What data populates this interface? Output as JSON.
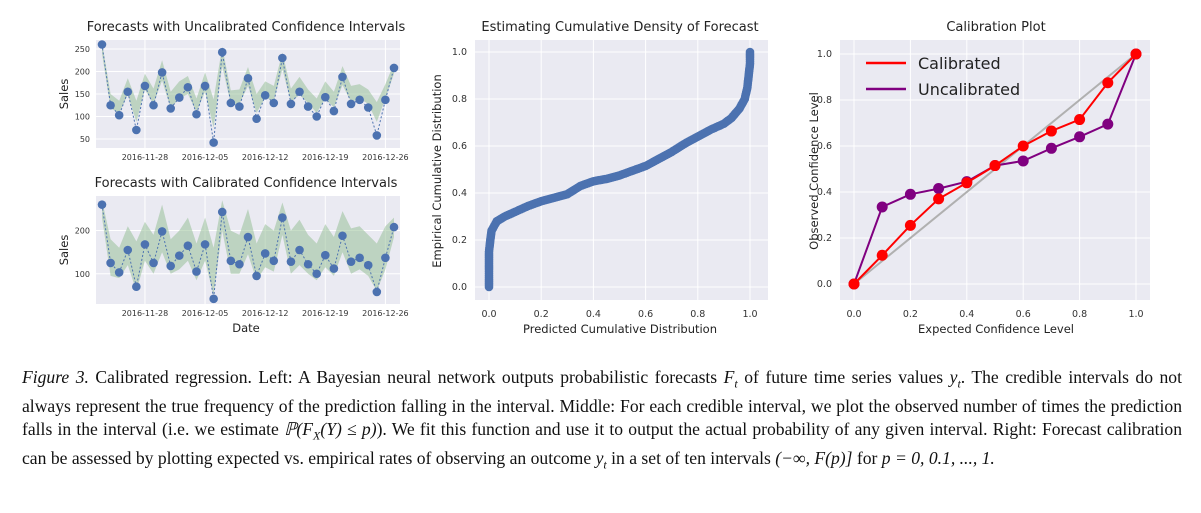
{
  "colors": {
    "panel_bg": "#EAEAF2",
    "grid": "#FFFFFF",
    "point": "#4C72B0",
    "band": "#8FBC8F",
    "calibrated": "#FF0000",
    "uncalibrated": "#800080",
    "diagonal": "#B0B0B0"
  },
  "chart_data": [
    {
      "id": "uncal",
      "type": "line",
      "title": "Forecasts with Uncalibrated Confidence Intervals",
      "xlabel": "",
      "ylabel": "Sales",
      "x_tick_labels": [
        "2016-11-28",
        "2016-12-05",
        "2016-12-12",
        "2016-12-19",
        "2016-12-26"
      ],
      "x_tick_index": [
        5,
        12,
        19,
        26,
        33
      ],
      "y_ticks": [
        50,
        100,
        150,
        200,
        250
      ],
      "ylim": [
        30,
        270
      ],
      "values": [
        260,
        125,
        103,
        155,
        70,
        168,
        125,
        198,
        118,
        142,
        165,
        105,
        168,
        42,
        243,
        130,
        122,
        185,
        95,
        147,
        130,
        230,
        128,
        155,
        122,
        100,
        143,
        112,
        188,
        128,
        137,
        120,
        58,
        137,
        208
      ],
      "band_lower": [
        240,
        118,
        108,
        148,
        88,
        160,
        128,
        180,
        118,
        140,
        150,
        110,
        155,
        75,
        212,
        128,
        128,
        168,
        108,
        142,
        135,
        205,
        132,
        148,
        130,
        108,
        140,
        120,
        170,
        132,
        140,
        128,
        88,
        140,
        195
      ],
      "band_upper": [
        265,
        150,
        135,
        185,
        135,
        195,
        162,
        225,
        155,
        178,
        190,
        140,
        198,
        138,
        255,
        158,
        160,
        210,
        150,
        178,
        168,
        242,
        162,
        188,
        160,
        140,
        178,
        155,
        212,
        168,
        172,
        160,
        132,
        172,
        218
      ]
    },
    {
      "id": "cal",
      "type": "line",
      "title": "Forecasts with Calibrated Confidence Intervals",
      "xlabel": "Date",
      "ylabel": "Sales",
      "x_tick_labels": [
        "2016-11-28",
        "2016-12-05",
        "2016-12-12",
        "2016-12-19",
        "2016-12-26"
      ],
      "x_tick_index": [
        5,
        12,
        19,
        26,
        33
      ],
      "y_ticks": [
        100,
        200
      ],
      "ylim": [
        30,
        280
      ],
      "values": [
        260,
        125,
        103,
        155,
        70,
        168,
        125,
        198,
        118,
        142,
        165,
        105,
        168,
        42,
        243,
        130,
        122,
        185,
        95,
        147,
        130,
        230,
        128,
        155,
        122,
        100,
        143,
        112,
        188,
        128,
        137,
        120,
        58,
        137,
        208
      ],
      "band_lower": [
        230,
        95,
        90,
        120,
        60,
        130,
        100,
        150,
        100,
        110,
        130,
        85,
        130,
        50,
        200,
        100,
        100,
        145,
        85,
        115,
        105,
        190,
        100,
        120,
        100,
        85,
        115,
        95,
        150,
        100,
        110,
        95,
        60,
        110,
        185
      ],
      "band_upper": [
        270,
        180,
        160,
        210,
        175,
        220,
        190,
        260,
        180,
        200,
        230,
        170,
        230,
        160,
        270,
        200,
        190,
        250,
        170,
        215,
        200,
        265,
        200,
        225,
        190,
        170,
        215,
        185,
        245,
        205,
        210,
        190,
        170,
        210,
        230
      ]
    },
    {
      "id": "cdf",
      "type": "scatter",
      "title": "Estimating Cumulative Density of Forecast",
      "xlabel": "Predicted Cumulative Distribution",
      "ylabel": "Empirical Cumulative Distribution",
      "xlim": [
        0,
        1
      ],
      "ylim": [
        0,
        1
      ],
      "x_ticks": [
        "0.0",
        "0.2",
        "0.4",
        "0.6",
        "0.8",
        "1.0"
      ],
      "y_ticks": [
        "0.0",
        "0.2",
        "0.4",
        "0.6",
        "0.8",
        "1.0"
      ],
      "curve": [
        [
          0.0,
          0.0
        ],
        [
          0.0,
          0.05
        ],
        [
          0.0,
          0.1
        ],
        [
          0.0,
          0.15
        ],
        [
          0.005,
          0.2
        ],
        [
          0.01,
          0.24
        ],
        [
          0.03,
          0.28
        ],
        [
          0.06,
          0.3
        ],
        [
          0.1,
          0.32
        ],
        [
          0.15,
          0.345
        ],
        [
          0.2,
          0.365
        ],
        [
          0.25,
          0.38
        ],
        [
          0.3,
          0.395
        ],
        [
          0.35,
          0.43
        ],
        [
          0.4,
          0.45
        ],
        [
          0.45,
          0.46
        ],
        [
          0.5,
          0.475
        ],
        [
          0.55,
          0.495
        ],
        [
          0.6,
          0.515
        ],
        [
          0.65,
          0.545
        ],
        [
          0.7,
          0.575
        ],
        [
          0.75,
          0.61
        ],
        [
          0.8,
          0.64
        ],
        [
          0.85,
          0.67
        ],
        [
          0.9,
          0.695
        ],
        [
          0.93,
          0.72
        ],
        [
          0.96,
          0.76
        ],
        [
          0.98,
          0.8
        ],
        [
          0.99,
          0.85
        ],
        [
          0.995,
          0.9
        ],
        [
          1.0,
          0.95
        ],
        [
          1.0,
          1.0
        ]
      ]
    },
    {
      "id": "calib",
      "type": "line",
      "title": "Calibration Plot",
      "xlabel": "Expected Confidence Level",
      "ylabel": "Observed Confidence Level",
      "xlim": [
        0,
        1
      ],
      "ylim": [
        0,
        1
      ],
      "x_ticks": [
        "0.0",
        "0.2",
        "0.4",
        "0.6",
        "0.8",
        "1.0"
      ],
      "y_ticks": [
        "0.0",
        "0.2",
        "0.4",
        "0.6",
        "0.8",
        "1.0"
      ],
      "legend_position": "top-left",
      "x": [
        0.0,
        0.1,
        0.2,
        0.3,
        0.4,
        0.5,
        0.6,
        0.7,
        0.8,
        0.9,
        1.0
      ],
      "series": [
        {
          "name": "Calibrated",
          "values": [
            0.0,
            0.125,
            0.255,
            0.37,
            0.44,
            0.515,
            0.6,
            0.665,
            0.715,
            0.875,
            1.0
          ]
        },
        {
          "name": "Uncalibrated",
          "values": [
            0.0,
            0.335,
            0.39,
            0.415,
            0.445,
            0.515,
            0.535,
            0.59,
            0.64,
            0.695,
            1.0
          ]
        }
      ]
    }
  ],
  "caption": {
    "label": "Figure 3.",
    "text": "Calibrated regression. Left: A Bayesian neural network outputs probabilistic forecasts F_t of future time series values y_t. The credible intervals do not always represent the true frequency of the prediction falling in the interval. Middle: For each credible interval, we plot the observed number of times the prediction falls in the interval (i.e. we estimate P(F_X(Y) ≤ p)). We fit this function and use it to output the actual probability of any given interval. Right: Forecast calibration can be assessed by plotting expected vs. empirical rates of observing an outcome y_t in a set of ten intervals (−∞, F(p)] for p = 0, 0.1, ..., 1.",
    "part1": "Calibrated regression. Left: A Bayesian neural network outputs probabilistic forecasts ",
    "F_t": "F",
    "sub_t": "t",
    "part2": " of future time series values ",
    "y_t": "y",
    "part3": ". The credible intervals do not always represent the true frequency of the prediction falling in the interval. Middle: For each credible interval, we plot the observed number of times the prediction falls in the interval (i.e. we estimate ",
    "prob_expr": "ℙ(F",
    "sub_X": "X",
    "prob_expr2": "(Y) ≤ p)",
    "part4": "). We fit this function and use it to output the actual probability of any given interval. Right: Forecast calibration can be assessed by plotting expected vs. empirical rates of observing an outcome ",
    "part5": " in a set of ten intervals ",
    "interval": "(−∞, F(p)]",
    "part6": " for ",
    "p_expr": "p = 0, 0.1, ..., 1."
  }
}
